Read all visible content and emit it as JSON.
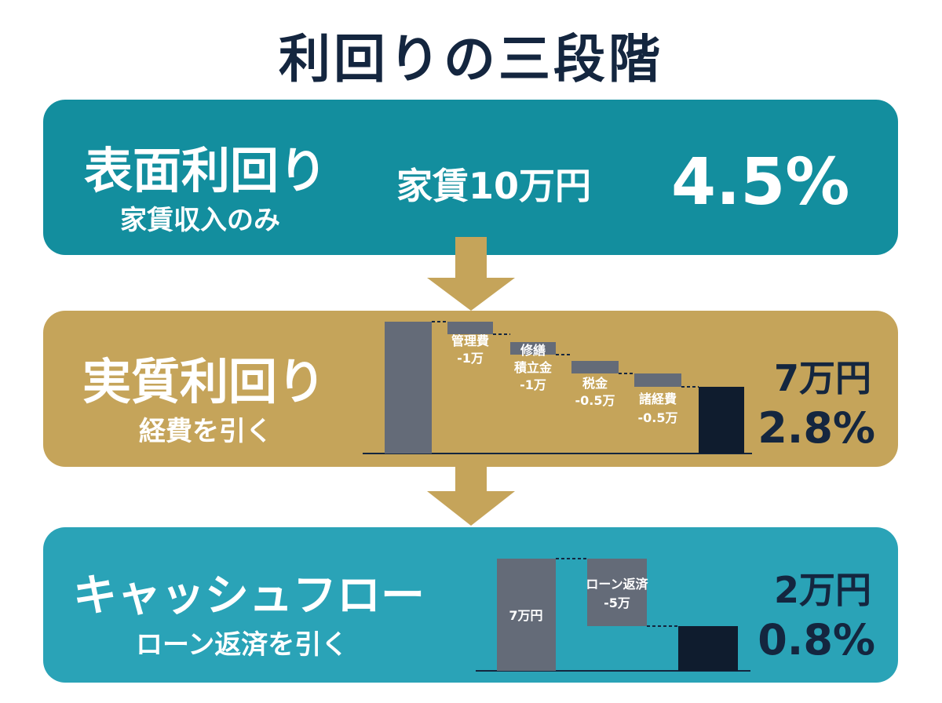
{
  "title": "利回りの三段階",
  "colors": {
    "navy": "#14263f",
    "teal": "#138e9e",
    "gold": "#c5a45a",
    "light_teal": "#2aa3b7",
    "bar_gray": "#646b78"
  },
  "stage1": {
    "title": "表面利回り",
    "subtitle": "家賃収入のみ",
    "rent_label": "家賃10万円",
    "yield": "4.5%"
  },
  "stage2": {
    "title": "実質利回り",
    "subtitle": "経費を引く",
    "net_amount": "7万円",
    "yield": "2.8%",
    "labels": {
      "mgmt": [
        "管理費",
        "-1万"
      ],
      "repair": [
        "修繕",
        "積立金",
        "-1万"
      ],
      "tax": [
        "税金",
        "-0.5万"
      ],
      "misc": [
        "諸経費",
        "-0.5万"
      ]
    }
  },
  "stage3": {
    "title": "キャッシュフロー",
    "subtitle": "ローン返済を引く",
    "net_amount": "2万円",
    "yield": "0.8%",
    "labels": {
      "start": "7万円",
      "loan": [
        "ローン返済",
        "-5万"
      ]
    }
  },
  "chart_data": [
    {
      "type": "waterfall",
      "categories": [
        "家賃",
        "管理費",
        "修繕積立金",
        "税金",
        "諸経費",
        "実質"
      ],
      "values": [
        10,
        -1,
        -1,
        -0.5,
        -0.5,
        7
      ],
      "unit": "万円"
    },
    {
      "type": "waterfall",
      "categories": [
        "7万円",
        "ローン返済",
        "キャッシュフロー"
      ],
      "values": [
        7,
        -5,
        2
      ],
      "unit": "万円"
    }
  ]
}
